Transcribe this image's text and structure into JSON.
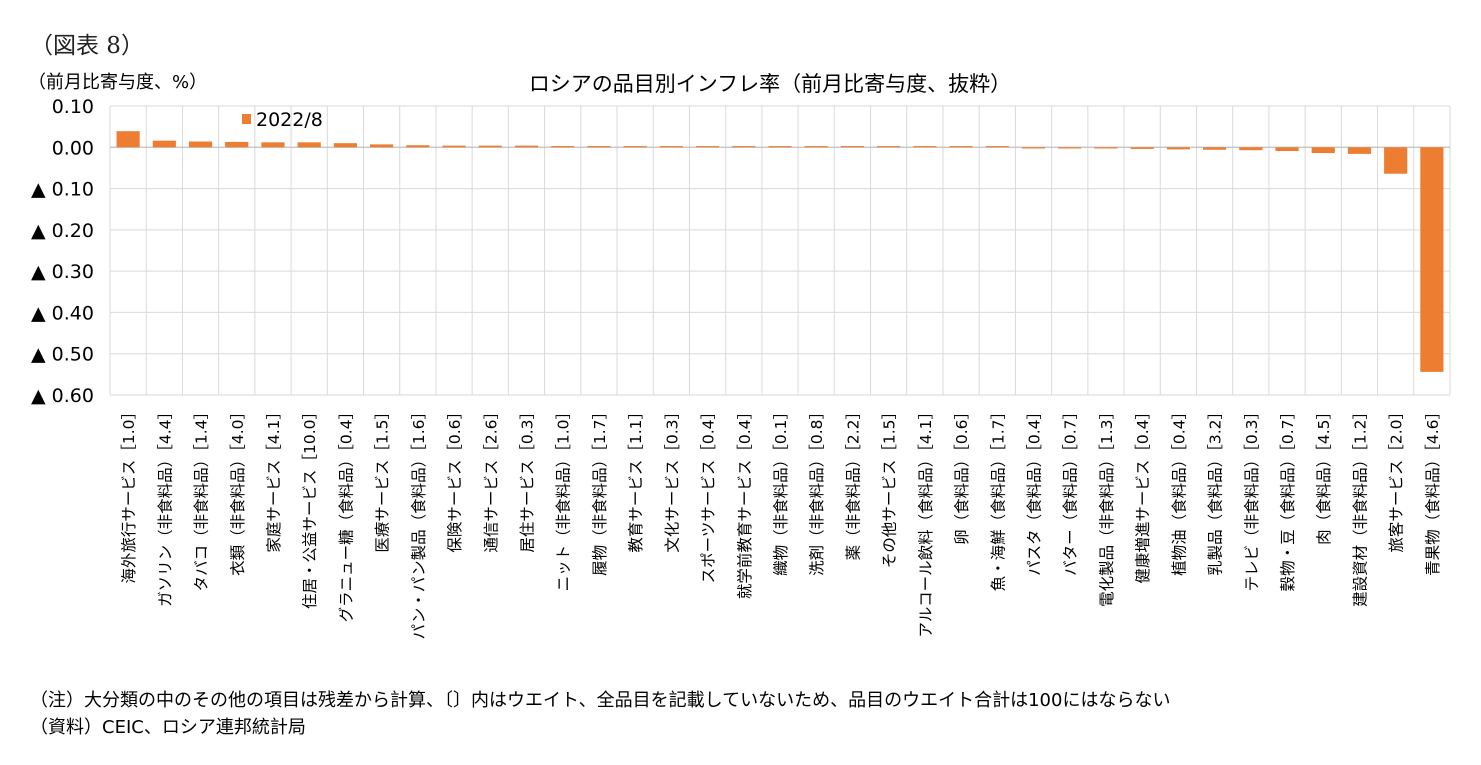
{
  "figure_label": "（図表 8）",
  "y_unit": "（前月比寄与度、%）",
  "title": "ロシアの品目別インフレ率（前月比寄与度、抜粋）",
  "notes": [
    "（注）大分類の中のその他の項目は残差から計算、〔〕内はウエイト、全品目を記載していないため、品目のウエイト合計は100にはならない",
    "（資料）CEIC、ロシア連邦統計局"
  ],
  "colors": {
    "bar": "#ED7D31",
    "grid": "#D9D9D9",
    "axis": "#BFBFBF"
  },
  "chart_data": {
    "type": "bar",
    "title": "ロシアの品目別インフレ率（前月比寄与度、抜粋）",
    "ylabel": "（前月比寄与度、%）",
    "ylim": [
      -0.6,
      0.1
    ],
    "yticks": [
      0.1,
      0.0,
      -0.1,
      -0.2,
      -0.3,
      -0.4,
      -0.5,
      -0.6
    ],
    "ytick_labels": [
      "0.10",
      "0.00",
      "▲ 0.10",
      "▲ 0.20",
      "▲ 0.30",
      "▲ 0.40",
      "▲ 0.50",
      "▲ 0.60"
    ],
    "legend": {
      "position": "top-left",
      "entries": [
        "2022/8"
      ]
    },
    "grid": true,
    "categories": [
      "海外旅行サービス［1.0］",
      "ガソリン（非食料品）［4.4］",
      "タバコ（非食料品）［1.4］",
      "衣類（非食料品）［4.0］",
      "家庭サービス［4.1］",
      "住居・公益サービス［10.0］",
      "グラニュー糖（食料品）［0.4］",
      "医療サービス［1.5］",
      "パン・パン製品（食料品）［1.6］",
      "保険サービス［0.6］",
      "通信サービス［2.6］",
      "居住サービス［0.3］",
      "ニット（非食料品）［1.0］",
      "履物（非食料品）［1.7］",
      "教育サービス［1.1］",
      "文化サービス［0.3］",
      "スポーツサービス［0.4］",
      "就学前教育サービス［0.4］",
      "織物（非食料品）［0.1］",
      "洗剤（非食料品）［0.8］",
      "薬（非食料品）［2.2］",
      "その他サービス［1.5］",
      "アルコール飲料（食料品）［4.1］",
      "卵（食料品）［0.6］",
      "魚・海鮮（食料品）［1.7］",
      "パスタ（食料品）［0.4］",
      "バター（食料品）［0.7］",
      "電化製品（非食料品）［1.3］",
      "健康増進サービス［0.4］",
      "植物油（食料品）［0.4］",
      "乳製品（食料品）［3.2］",
      "テレビ（非食料品）［0.3］",
      "穀物・豆（食料品）［0.7］",
      "肉（食料品）［4.5］",
      "建設資材（非食料品）［1.2］",
      "旅客サービス［2.0］",
      "青果物（食料品）［4.6］"
    ],
    "series": [
      {
        "name": "2022/8",
        "values": [
          0.039,
          0.016,
          0.014,
          0.013,
          0.012,
          0.012,
          0.01,
          0.007,
          0.005,
          0.004,
          0.004,
          0.004,
          0.003,
          0.003,
          0.002,
          0.002,
          0.001,
          0.001,
          0.001,
          0.0,
          0.0,
          0.0,
          0.0,
          0.0,
          0.0,
          -0.001,
          -0.001,
          -0.002,
          -0.004,
          -0.005,
          -0.006,
          -0.007,
          -0.009,
          -0.014,
          -0.016,
          -0.064,
          -0.544
        ]
      }
    ]
  }
}
